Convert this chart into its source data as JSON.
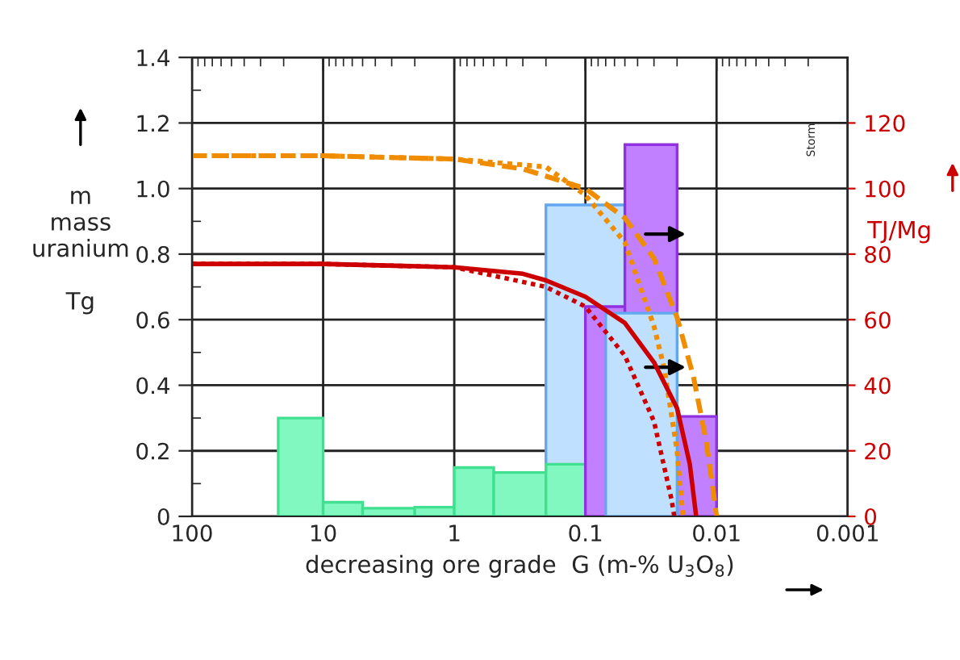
{
  "chart_data": {
    "type": "histogram",
    "xlabel": "decreasing ore grade  G (m-% U$_{3}$O$_{8}$)",
    "ylabel": "m\nmass\nuranium\n\nTg",
    "y2label": "TJ/Mg",
    "annotations": [
      "Storm"
    ],
    "log": "x",
    "grid": true,
    "legend": false,
    "marker": "none",
    "xlim": [
      100,
      0.001
    ],
    "xticks": [
      100,
      10,
      1,
      0.1,
      0.01,
      0.001
    ],
    "ylim": [
      0,
      1.4
    ],
    "yticks": [
      0,
      0.2,
      0.4,
      0.6,
      0.8,
      {
        "value": 1,
        "label": "1.0"
      },
      1.2,
      1.4
    ],
    "y2lim": [
      0,
      140
    ],
    "y2ticks": [
      0,
      20,
      40,
      60,
      80,
      100,
      120
    ],
    "series": [
      {
        "color": "#c0e0ff",
        "bins": [
          0.2,
          0.05
        ],
        "values": [
          0.95
        ]
      },
      {
        "color": "#80f8c0",
        "bins": [
          22,
          10,
          5,
          2,
          1,
          0.5,
          0.2,
          0.1
        ],
        "values": [
          0.3,
          0.043,
          0.025,
          0.028,
          0.149,
          0.134,
          0.159
        ]
      },
      {
        "color": "#c080ff",
        "bins": [
          0.1,
          0.05,
          0.02,
          0.01
        ],
        "values": [
          0.64,
          1.134,
          0.305
        ]
      },
      {
        "color": "#c0e0ff",
        "bins": [
          0.07,
          0.02
        ],
        "values": [
          0.62
        ]
      },
      {
        "type": "line",
        "color": "#f08c00",
        "line_style": "dashed",
        "x": [
          100,
          10,
          1,
          0.3,
          0.1,
          0.05,
          0.03,
          0.02,
          0.015,
          0.012,
          0.0105,
          0.01
        ],
        "values": [
          1.1,
          1.1,
          1.09,
          1.06,
          1.0,
          0.91,
          0.787,
          0.607,
          0.426,
          0.23,
          0.066,
          0
        ]
      },
      {
        "type": "line",
        "color": "#f08c00",
        "line_style": "dotted",
        "x": [
          100,
          10,
          1,
          0.2,
          0.1,
          0.05,
          0.03,
          0.025,
          0.02,
          0.018
        ],
        "values": [
          1.1,
          1.1,
          1.09,
          1.066,
          0.98,
          0.836,
          0.58,
          0.45,
          0.2,
          0
        ]
      },
      {
        "type": "line",
        "color": "#cc0000",
        "line_style": "solid",
        "axis": "y2",
        "x": [
          100,
          10,
          1,
          0.3,
          0.2,
          0.1,
          0.05,
          0.03,
          0.02,
          0.016,
          0.0143
        ],
        "values": [
          77,
          77,
          76,
          74,
          72,
          67,
          59,
          47,
          33,
          16,
          0
        ]
      },
      {
        "type": "line",
        "color": "#cc0000",
        "line_style": "dotted",
        "axis": "y2",
        "x": [
          100,
          10,
          1,
          0.2,
          0.1,
          0.05,
          0.03,
          0.022,
          0.021
        ],
        "values": [
          77,
          77,
          76,
          70,
          64,
          49,
          29,
          5,
          0
        ]
      }
    ]
  }
}
